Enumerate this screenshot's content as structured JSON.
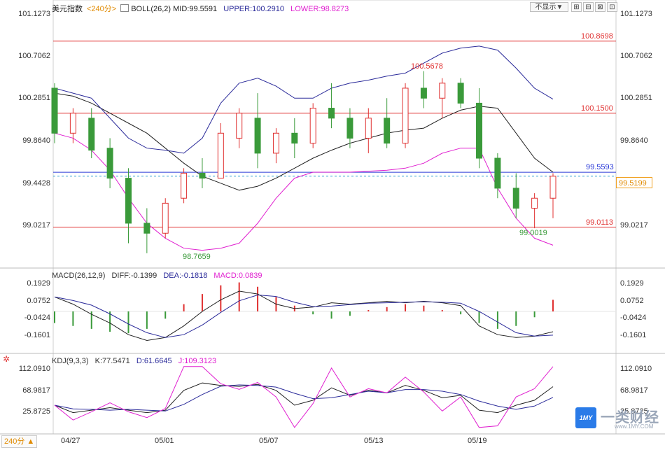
{
  "header": {
    "instrument": "美元指数",
    "period": "<240分>",
    "boll": "BOLL(26,2)",
    "mid": "MID:99.5591",
    "upper": "UPPER:100.2910",
    "lower": "LOWER:98.8273"
  },
  "controls": {
    "hide_label": "不显示▼",
    "buttons": [
      "⊞",
      "⊟",
      "⊠",
      "⊡"
    ]
  },
  "price_panel": {
    "left_ticks": [
      "101.1273",
      "100.7062",
      "100.2851",
      "99.8640",
      "99.4428",
      "99.0217"
    ],
    "right_ticks": [
      "101.1273",
      "100.7062",
      "100.2851",
      "99.8640",
      "99.4428",
      "99.0217"
    ],
    "h_lines": [
      {
        "label": "100.8698",
        "color": "#e03030"
      },
      {
        "label": "100.1500",
        "color": "#e03030"
      },
      {
        "label": "99.5593",
        "color": "#2b3bd8"
      },
      {
        "label": "99.0113",
        "color": "#e03030"
      }
    ],
    "current_price": "99.5199",
    "annotations": {
      "high": "100.5678",
      "low1": "98.7659",
      "low2": "99.0019"
    }
  },
  "macd_panel": {
    "title": "MACD(26,12,9)",
    "diff": "DIFF:-0.1399",
    "dea": "DEA:-0.1818",
    "macd": "MACD:0.0839",
    "left_ticks": [
      "0.1929",
      "0.0752",
      "-0.0424",
      "-0.1601"
    ],
    "right_ticks": [
      "0.1929",
      "0.0752",
      "-0.0424",
      "-0.1601"
    ]
  },
  "kdj_panel": {
    "title": "KDJ(9,3,3)",
    "k": "K:77.5471",
    "d": "D:61.6645",
    "j": "J:109.3123",
    "left_ticks": [
      "112.0910",
      "68.9817",
      "25.8725"
    ],
    "right_ticks": [
      "112.0910",
      "68.9817",
      "25.8725"
    ]
  },
  "x_axis": {
    "period_button": "240分 ▲",
    "dates": [
      "04/27",
      "05/01",
      "05/07",
      "05/13",
      "05/19"
    ]
  },
  "colors": {
    "up": "#e03030",
    "down": "#3a9a3a",
    "mid": "#222222",
    "upper": "#2b2b9a",
    "lower": "#e020d0",
    "diff": "#222222",
    "dea": "#2b2b9a",
    "k": "#222222",
    "d": "#2b2b9a",
    "j": "#e020d0"
  },
  "logo": {
    "brand": "一类财经",
    "url": "www.1MY.COM"
  },
  "chart_data": {
    "type": "line",
    "title": "美元指数 240分",
    "series_boll": [
      {
        "name": "MID",
        "values": [
          100.35,
          100.32,
          100.25,
          100.15,
          100.05,
          99.95,
          99.8,
          99.65,
          99.52,
          99.45,
          99.38,
          99.42,
          99.5,
          99.6,
          99.7,
          99.78,
          99.85,
          99.9,
          99.95,
          99.98,
          100.0,
          100.1,
          100.18,
          100.22,
          100.2,
          99.95,
          99.7,
          99.56
        ]
      },
      {
        "name": "UPPER",
        "values": [
          100.4,
          100.35,
          100.3,
          100.1,
          99.9,
          99.8,
          99.78,
          99.75,
          99.9,
          100.25,
          100.45,
          100.5,
          100.42,
          100.3,
          100.3,
          100.4,
          100.45,
          100.48,
          100.52,
          100.55,
          100.65,
          100.75,
          100.8,
          100.82,
          100.78,
          100.6,
          100.4,
          100.29
        ]
      },
      {
        "name": "LOWER",
        "values": [
          99.95,
          99.9,
          99.78,
          99.58,
          99.3,
          99.05,
          98.9,
          98.8,
          98.78,
          98.8,
          98.85,
          99.05,
          99.3,
          99.5,
          99.56,
          99.56,
          99.56,
          99.57,
          99.58,
          99.6,
          99.65,
          99.75,
          99.8,
          99.8,
          99.4,
          99.1,
          98.9,
          98.83
        ]
      }
    ],
    "candles_ohlc": [
      [
        100.4,
        100.45,
        99.85,
        99.95
      ],
      [
        99.95,
        100.2,
        99.85,
        100.15
      ],
      [
        100.1,
        100.2,
        99.7,
        99.78
      ],
      [
        99.8,
        99.9,
        99.4,
        99.5
      ],
      [
        99.5,
        99.6,
        98.85,
        99.05
      ],
      [
        99.05,
        99.2,
        98.75,
        98.95
      ],
      [
        98.95,
        99.3,
        98.9,
        99.25
      ],
      [
        99.3,
        99.6,
        99.25,
        99.55
      ],
      [
        99.55,
        99.7,
        99.4,
        99.5
      ],
      [
        99.5,
        100.05,
        99.5,
        99.95
      ],
      [
        99.9,
        100.2,
        99.8,
        100.15
      ],
      [
        100.1,
        100.35,
        99.6,
        99.75
      ],
      [
        99.75,
        100.0,
        99.65,
        99.95
      ],
      [
        99.95,
        100.1,
        99.7,
        99.85
      ],
      [
        99.85,
        100.25,
        99.8,
        100.2
      ],
      [
        100.2,
        100.45,
        100.0,
        100.1
      ],
      [
        100.1,
        100.2,
        99.8,
        99.9
      ],
      [
        99.9,
        100.2,
        99.75,
        100.1
      ],
      [
        100.1,
        100.3,
        99.8,
        99.85
      ],
      [
        99.85,
        100.45,
        99.8,
        100.4
      ],
      [
        100.4,
        100.57,
        100.2,
        100.3
      ],
      [
        100.3,
        100.5,
        100.1,
        100.45
      ],
      [
        100.45,
        100.5,
        100.2,
        100.25
      ],
      [
        100.25,
        100.4,
        99.6,
        99.7
      ],
      [
        99.7,
        99.75,
        99.3,
        99.4
      ],
      [
        99.4,
        99.55,
        99.1,
        99.2
      ],
      [
        99.2,
        99.35,
        99.0,
        99.3
      ],
      [
        99.3,
        99.55,
        99.1,
        99.52
      ]
    ],
    "macd": {
      "hist": [
        -0.08,
        -0.1,
        -0.12,
        -0.14,
        -0.15,
        -0.12,
        -0.05,
        0.05,
        0.12,
        0.18,
        0.2,
        0.17,
        0.1,
        0.04,
        -0.02,
        -0.05,
        -0.03,
        0.01,
        0.03,
        0.05,
        0.04,
        0.01,
        -0.02,
        -0.08,
        -0.12,
        -0.1,
        -0.04,
        0.08
      ],
      "diff": [
        0.1,
        0.05,
        -0.02,
        -0.08,
        -0.16,
        -0.2,
        -0.18,
        -0.1,
        0.0,
        0.08,
        0.14,
        0.12,
        0.05,
        0.02,
        0.03,
        0.06,
        0.05,
        0.06,
        0.07,
        0.06,
        0.07,
        0.06,
        0.04,
        -0.1,
        -0.16,
        -0.18,
        -0.17,
        -0.14
      ]
    },
    "kdj": {
      "k": [
        40,
        25,
        30,
        35,
        30,
        25,
        30,
        70,
        85,
        80,
        78,
        82,
        70,
        40,
        50,
        75,
        60,
        70,
        65,
        80,
        70,
        55,
        60,
        30,
        25,
        40,
        50,
        77.5
      ]
    }
  }
}
